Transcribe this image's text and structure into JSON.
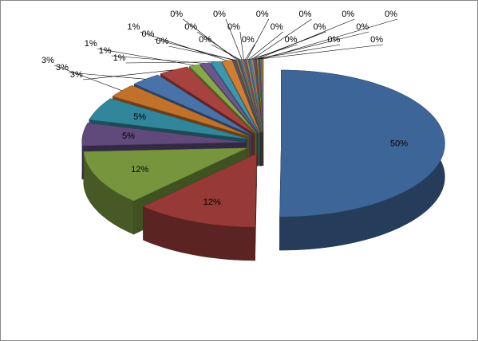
{
  "chart_data": {
    "type": "pie3d",
    "values": [
      50,
      12,
      12,
      5,
      5,
      3,
      3,
      3,
      1,
      1,
      1,
      1,
      0.15,
      0.15,
      0.15,
      0.15,
      0.15,
      0.15,
      0.15,
      0.15,
      0.15,
      0.15,
      0.15,
      0.15,
      0.15,
      0.15,
      0.15,
      0.15,
      0.15,
      0.15
    ],
    "value_labels": [
      "50%",
      "12%",
      "12%",
      "5%",
      "5%",
      "3%",
      "3%",
      "3%",
      "1%",
      "1%",
      "1%",
      "1%",
      "0%",
      "0%",
      "0%",
      "0%",
      "0%",
      "0%",
      "0%",
      "0%",
      "0%",
      "0%",
      "0%",
      "0%",
      "0%",
      "0%",
      "0%",
      "0%",
      "0%",
      "0%"
    ],
    "colors": [
      "#3d6597",
      "#973a37",
      "#77953d",
      "#5f4a7b",
      "#31869b",
      "#c0722b",
      "#4872a8",
      "#a8423f",
      "#86a84a",
      "#6c568b",
      "#3a97ae",
      "#d17e33"
    ]
  }
}
